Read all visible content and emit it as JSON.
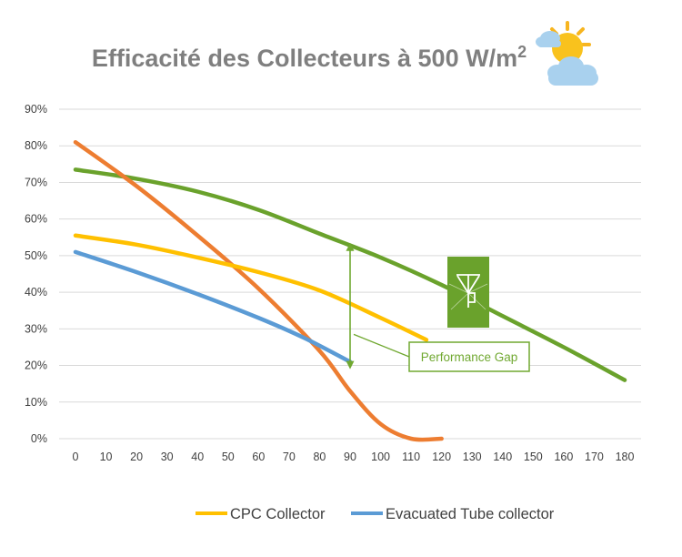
{
  "chart_data": {
    "type": "line",
    "title": "Efficacité des Collecteurs à 500 W/m",
    "title_superscript": "2",
    "xlabel": "",
    "ylabel": "",
    "x_ticks": [
      "0",
      "10",
      "20",
      "30",
      "40",
      "50",
      "60",
      "70",
      "80",
      "90",
      "100",
      "110",
      "120",
      "130",
      "140",
      "150",
      "160",
      "170",
      "180"
    ],
    "y_ticks": [
      "0%",
      "10%",
      "20%",
      "30%",
      "40%",
      "50%",
      "60%",
      "70%",
      "80%",
      "90%"
    ],
    "xlim": [
      0,
      180
    ],
    "ylim": [
      0,
      0.9
    ],
    "grid": true,
    "legend_position": "bottom",
    "series": [
      {
        "name": "",
        "color": "#6aa22c",
        "x": [
          0,
          20,
          40,
          60,
          80,
          100,
          120,
          140,
          160,
          180
        ],
        "y": [
          0.735,
          0.71,
          0.675,
          0.625,
          0.56,
          0.495,
          0.42,
          0.335,
          0.25,
          0.16
        ]
      },
      {
        "name": "",
        "color": "#ed7d31",
        "x": [
          0,
          20,
          40,
          60,
          80,
          90,
          100,
          110,
          120
        ],
        "y": [
          0.81,
          0.69,
          0.555,
          0.41,
          0.24,
          0.13,
          0.04,
          0.0,
          0.0
        ]
      },
      {
        "name": "CPC Collector",
        "color": "#ffc000",
        "x": [
          0,
          20,
          40,
          60,
          80,
          100,
          115
        ],
        "y": [
          0.555,
          0.53,
          0.495,
          0.455,
          0.405,
          0.33,
          0.27
        ]
      },
      {
        "name": "Evacuated Tube collector",
        "color": "#5b9bd5",
        "x": [
          0,
          20,
          40,
          60,
          75,
          90
        ],
        "y": [
          0.51,
          0.455,
          0.395,
          0.33,
          0.275,
          0.21
        ]
      }
    ],
    "annotations": [
      {
        "text": "Performance Gap",
        "x": 90,
        "y_from": 0.19,
        "y_to": 0.535
      }
    ],
    "legend": [
      "CPC Collector",
      "Evacuated Tube collector"
    ]
  },
  "icons": {
    "weather": "partly-cloudy-sun-icon",
    "badge": "solar-tower-icon"
  }
}
